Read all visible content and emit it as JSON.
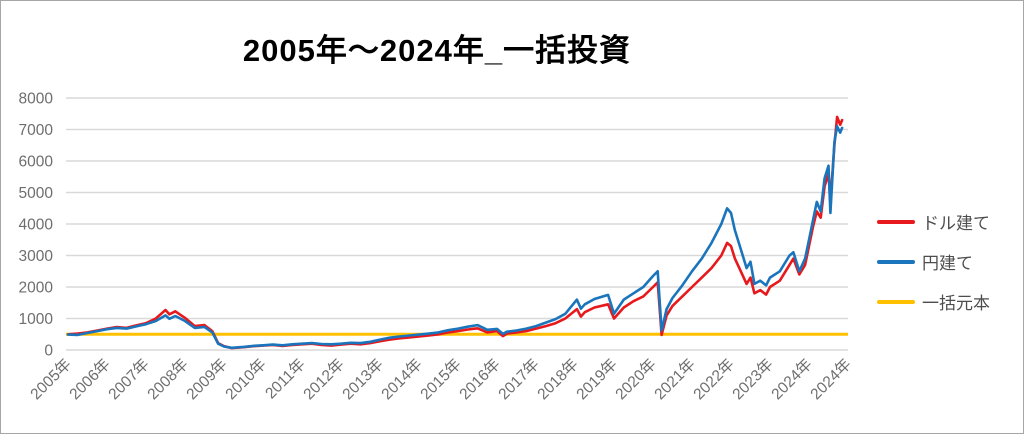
{
  "title": "2005年〜2024年_一括投資",
  "colors": {
    "dollar": "#e8191c",
    "yen": "#1b75bc",
    "principal": "#ffc000",
    "grid": "#d9d9d9",
    "axis_text": "#6e6e6e",
    "frame_border": "#a6a6a6",
    "title_text": "#000000"
  },
  "legend": [
    {
      "label": "ドル建て",
      "color_key": "dollar"
    },
    {
      "label": "円建て",
      "color_key": "yen"
    },
    {
      "label": "一括元本",
      "color_key": "principal"
    }
  ],
  "chart_data": {
    "type": "line",
    "title": "2005年〜2024年_一括投資",
    "xlabel": "",
    "ylabel": "",
    "ylim": [
      0,
      8000
    ],
    "yticks": [
      0,
      1000,
      2000,
      3000,
      4000,
      5000,
      6000,
      7000,
      8000
    ],
    "grid": "horizontal",
    "legend_position": "right",
    "x_tick_labels": [
      "2005年",
      "2006年",
      "2007年",
      "2008年",
      "2009年",
      "2010年",
      "2011年",
      "2012年",
      "2013年",
      "2014年",
      "2015年",
      "2016年",
      "2017年",
      "2018年",
      "2019年",
      "2020年",
      "2021年",
      "2022年",
      "2023年",
      "2024年",
      "2024年"
    ],
    "x": [
      2005.0,
      2005.25,
      2005.5,
      2005.75,
      2006.0,
      2006.25,
      2006.5,
      2006.75,
      2007.0,
      2007.25,
      2007.5,
      2007.6,
      2007.75,
      2008.0,
      2008.25,
      2008.5,
      2008.7,
      2008.85,
      2009.0,
      2009.2,
      2009.5,
      2009.75,
      2010.0,
      2010.25,
      2010.5,
      2010.75,
      2011.0,
      2011.25,
      2011.5,
      2011.75,
      2012.0,
      2012.25,
      2012.5,
      2012.75,
      2013.0,
      2013.25,
      2013.5,
      2013.75,
      2014.0,
      2014.25,
      2014.5,
      2014.75,
      2015.0,
      2015.25,
      2015.5,
      2015.75,
      2016.0,
      2016.15,
      2016.25,
      2016.5,
      2016.75,
      2017.0,
      2017.25,
      2017.5,
      2017.75,
      2018.05,
      2018.15,
      2018.25,
      2018.5,
      2018.85,
      2019.0,
      2019.25,
      2019.5,
      2019.75,
      2020.0,
      2020.12,
      2020.22,
      2020.35,
      2020.5,
      2020.75,
      2021.0,
      2021.25,
      2021.5,
      2021.75,
      2021.9,
      2022.0,
      2022.1,
      2022.25,
      2022.4,
      2022.5,
      2022.6,
      2022.75,
      2022.9,
      2023.0,
      2023.25,
      2023.5,
      2023.6,
      2023.75,
      2023.9,
      2024.0,
      2024.1,
      2024.2,
      2024.3,
      2024.4,
      2024.5,
      2024.55,
      2024.65,
      2024.72,
      2024.8,
      2024.85
    ],
    "series": [
      {
        "name": "ドル建て",
        "color_key": "dollar",
        "values": [
          500,
          520,
          560,
          620,
          680,
          730,
          700,
          780,
          850,
          1000,
          1270,
          1130,
          1230,
          1020,
          760,
          790,
          600,
          220,
          120,
          60,
          90,
          120,
          140,
          160,
          130,
          160,
          180,
          200,
          160,
          140,
          170,
          200,
          180,
          220,
          280,
          330,
          370,
          400,
          430,
          460,
          500,
          560,
          600,
          650,
          690,
          560,
          600,
          440,
          520,
          560,
          600,
          680,
          760,
          850,
          1000,
          1300,
          1060,
          1200,
          1350,
          1450,
          1000,
          1350,
          1550,
          1700,
          2000,
          2150,
          480,
          1100,
          1400,
          1700,
          2000,
          2300,
          2600,
          3000,
          3400,
          3300,
          2900,
          2500,
          2100,
          2300,
          1800,
          1900,
          1760,
          2000,
          2200,
          2700,
          2900,
          2400,
          2700,
          3300,
          3900,
          4400,
          4200,
          5200,
          5600,
          4700,
          6500,
          7400,
          7150,
          7300
        ]
      },
      {
        "name": "円建て",
        "color_key": "yen",
        "values": [
          490,
          480,
          540,
          600,
          660,
          700,
          680,
          750,
          820,
          920,
          1100,
          990,
          1080,
          920,
          700,
          730,
          560,
          200,
          110,
          70,
          100,
          130,
          150,
          170,
          150,
          180,
          200,
          220,
          190,
          180,
          200,
          230,
          220,
          260,
          330,
          390,
          430,
          460,
          490,
          520,
          560,
          630,
          680,
          740,
          790,
          640,
          670,
          510,
          580,
          620,
          680,
          760,
          870,
          980,
          1150,
          1600,
          1310,
          1450,
          1620,
          1750,
          1150,
          1600,
          1800,
          2000,
          2350,
          2500,
          620,
          1300,
          1650,
          2050,
          2500,
          2900,
          3400,
          4000,
          4500,
          4350,
          3800,
          3200,
          2600,
          2800,
          2100,
          2200,
          2050,
          2300,
          2500,
          3000,
          3100,
          2500,
          2900,
          3500,
          4100,
          4700,
          4400,
          5450,
          5850,
          4350,
          6600,
          7100,
          6900,
          7050
        ]
      },
      {
        "name": "一括元本",
        "color_key": "principal",
        "constant": 500
      }
    ]
  }
}
